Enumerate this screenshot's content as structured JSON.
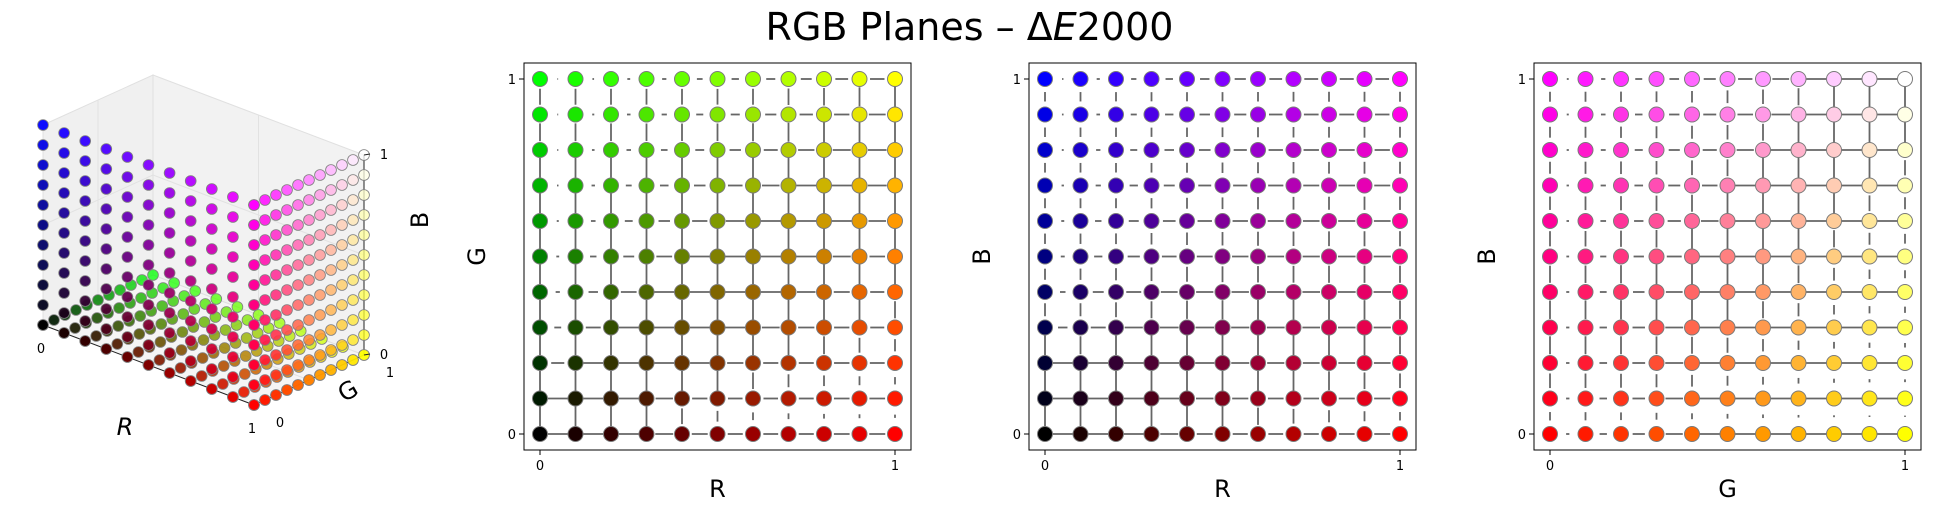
{
  "figure": {
    "title_prefix": "RGB Planes – Δ",
    "title_italic": "E",
    "title_suffix": "2000"
  },
  "chart_data": [
    {
      "type": "scatter3d",
      "name": "rgb-cube-3d",
      "axes": {
        "x": "R",
        "y": "G",
        "z": "B"
      },
      "ticks": {
        "x": [
          "0",
          "1"
        ],
        "y": [
          "0",
          "1"
        ],
        "z": [
          "0",
          "1"
        ]
      },
      "grid_steps": 10,
      "planes": [
        "R-G at B=0",
        "R-B at G=0",
        "G-B at R=1"
      ],
      "grid": true
    },
    {
      "type": "scatter",
      "name": "rg-plane",
      "xlabel": "R",
      "ylabel": "G",
      "xticks": [
        "0",
        "1"
      ],
      "yticks": [
        "0",
        "1"
      ],
      "xlim": [
        0,
        1
      ],
      "ylim": [
        0,
        1
      ],
      "grid_steps": 10,
      "fixed_channel": {
        "B": 0
      },
      "connections": "ΔE2000 between neighbouring points (segment length)",
      "grid": false
    },
    {
      "type": "scatter",
      "name": "rb-plane",
      "xlabel": "R",
      "ylabel": "B",
      "xticks": [
        "0",
        "1"
      ],
      "yticks": [
        "0",
        "1"
      ],
      "xlim": [
        0,
        1
      ],
      "ylim": [
        0,
        1
      ],
      "grid_steps": 10,
      "fixed_channel": {
        "G": 0
      },
      "connections": "ΔE2000 between neighbouring points (segment length)",
      "grid": false
    },
    {
      "type": "scatter",
      "name": "gb-plane",
      "xlabel": "G",
      "ylabel": "B",
      "xticks": [
        "0",
        "1"
      ],
      "yticks": [
        "0",
        "1"
      ],
      "xlim": [
        0,
        1
      ],
      "ylim": [
        0,
        1
      ],
      "grid_steps": 10,
      "fixed_channel": {
        "R": 1
      },
      "connections": "ΔE2000 between neighbouring points (segment length)",
      "grid": false
    }
  ]
}
